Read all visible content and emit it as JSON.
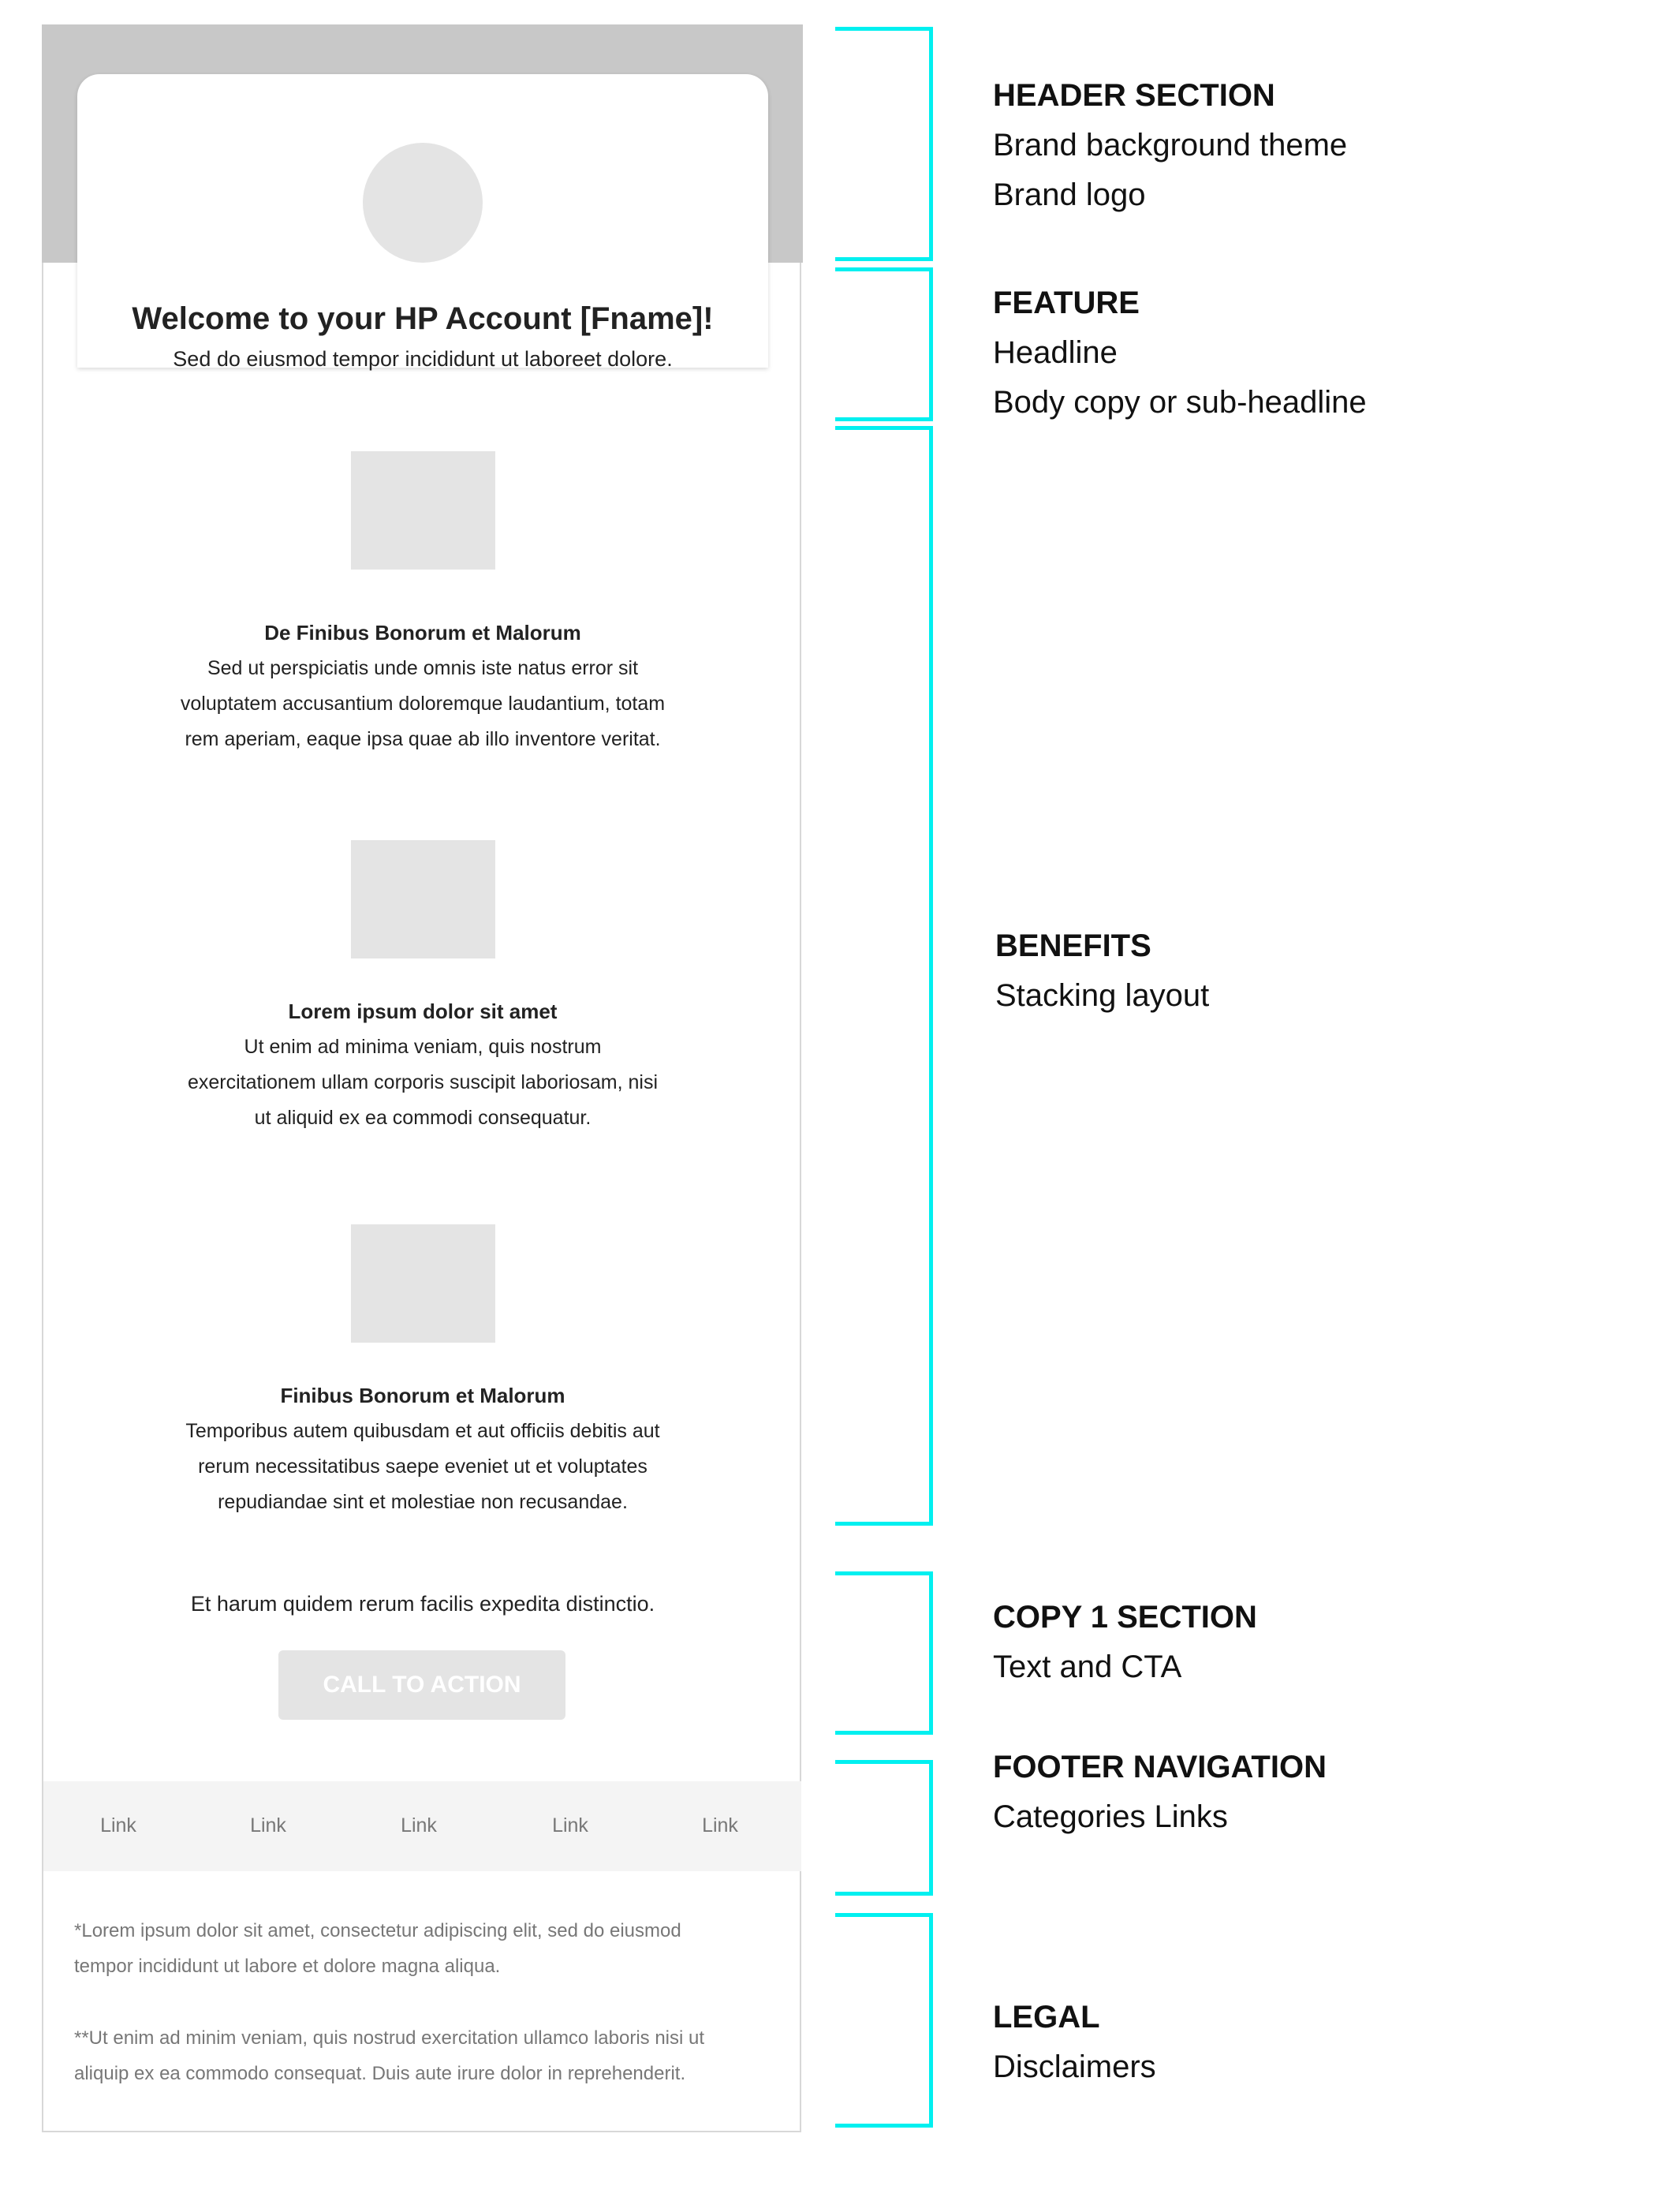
{
  "email": {
    "headline": "Welcome to your HP Account [Fname]!",
    "subheadline": "Sed do eiusmod tempor incididunt ut laboreet dolore.",
    "benefits": [
      {
        "title": "De Finibus Bonorum et Malorum",
        "lines": [
          "Sed ut perspiciatis unde omnis iste natus error sit",
          "voluptatem accusantium doloremque laudantium, totam",
          "rem aperiam, eaque ipsa quae ab illo inventore veritat."
        ]
      },
      {
        "title": "Lorem ipsum dolor sit amet",
        "lines": [
          "Ut enim ad minima veniam, quis nostrum",
          "exercitationem ullam corporis suscipit laboriosam, nisi",
          "ut aliquid ex ea commodi consequatur."
        ]
      },
      {
        "title": "Finibus Bonorum et Malorum",
        "lines": [
          "Temporibus autem quibusdam et aut officiis debitis aut",
          "rerum necessitatibus saepe eveniet ut et voluptates",
          "repudiandae sint et molestiae non recusandae."
        ]
      }
    ],
    "copy": "Et harum quidem rerum facilis expedita distinctio.",
    "cta": "CALL TO ACTION",
    "footer_links": [
      "Link",
      "Link",
      "Link",
      "Link",
      "Link"
    ],
    "legal": [
      [
        "*Lorem ipsum dolor sit amet, consectetur adipiscing elit, sed do eiusmod",
        "tempor incididunt ut labore et dolore magna aliqua."
      ],
      [
        "**Ut enim ad minim veniam, quis nostrud exercitation ullamco laboris nisi ut",
        "aliquip ex ea commodo consequat. Duis aute irure dolor in reprehenderit."
      ]
    ]
  },
  "annotations": [
    {
      "title": "HEADER SECTION",
      "lines": [
        "Brand background theme",
        "Brand logo"
      ]
    },
    {
      "title": "FEATURE",
      "lines": [
        "Headline",
        "Body copy or sub-headline"
      ]
    },
    {
      "title": "BENEFITS",
      "lines": [
        "Stacking layout"
      ]
    },
    {
      "title": "COPY 1 SECTION",
      "lines": [
        "Text and CTA"
      ]
    },
    {
      "title": "FOOTER NAVIGATION",
      "lines": [
        "Categories Links"
      ]
    },
    {
      "title": "LEGAL",
      "lines": [
        "Disclaimers"
      ]
    }
  ],
  "colors": {
    "bracket": "#00f0f0",
    "header_bg": "#c8c8c8",
    "placeholder": "#e4e4e4",
    "footer_bg": "#f4f4f4"
  }
}
